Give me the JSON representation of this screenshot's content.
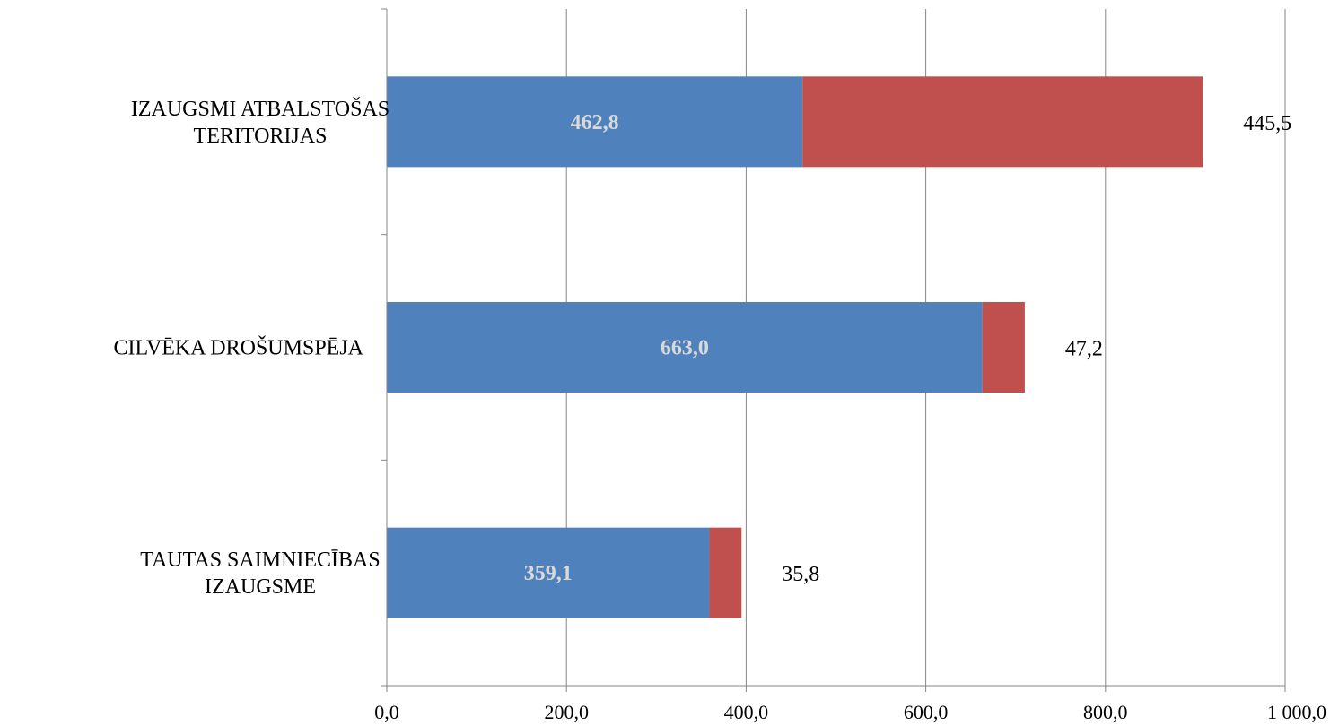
{
  "chart_data": {
    "type": "bar",
    "orientation": "horizontal",
    "stacked": true,
    "categories": [
      [
        "IZAUGSMI ATBALSTOŠAS",
        "TERITORIJAS"
      ],
      [
        "CILVĒKA DROŠUMSPĒJA"
      ],
      [
        "TAUTAS SAIMNIECĪBAS",
        "IZAUGSME"
      ]
    ],
    "series": [
      {
        "color": "#4f81bd",
        "values": [
          462.8,
          663.0,
          359.1
        ],
        "labels": [
          "462,8",
          "663,0",
          "359,1"
        ]
      },
      {
        "color": "#c0504d",
        "values": [
          445.5,
          47.2,
          35.8
        ],
        "labels": [
          "445,5",
          "47,2",
          "35,8"
        ]
      }
    ],
    "xlim": [
      0,
      1000
    ],
    "xticks": [
      0,
      200,
      400,
      600,
      800,
      1000
    ],
    "xtick_labels": [
      "0,0",
      "200,0",
      "400,0",
      "600,0",
      "800,0",
      "1 000,0"
    ],
    "grid": "vertical",
    "legend": "none",
    "title": "",
    "xlabel": "",
    "ylabel": ""
  }
}
